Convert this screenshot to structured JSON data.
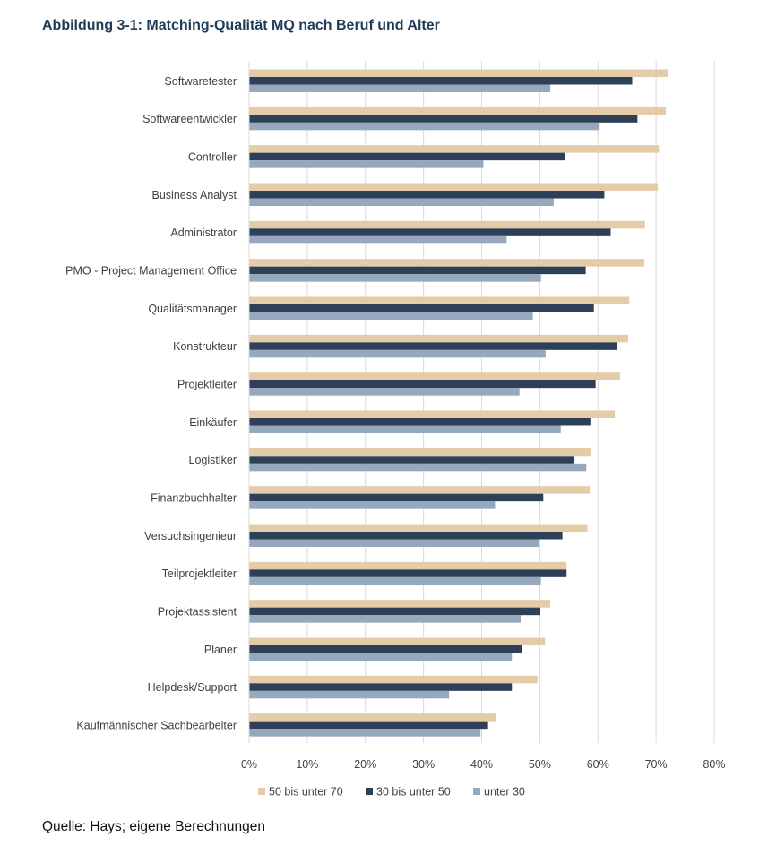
{
  "title": "Abbildung 3-1: Matching-Qualität MQ nach Beruf und Alter",
  "source": "Quelle: Hays; eigene Berechnungen",
  "chart_data": {
    "type": "bar",
    "orientation": "horizontal",
    "title": "",
    "xlabel": "",
    "ylabel": "",
    "xlim": [
      0,
      80
    ],
    "x_ticks": [
      "0%",
      "10%",
      "20%",
      "30%",
      "40%",
      "50%",
      "60%",
      "70%",
      "80%"
    ],
    "grid": true,
    "legend_position": "bottom",
    "categories": [
      "Softwaretester",
      "Softwareentwickler",
      "Controller",
      "Business Analyst",
      "Administrator",
      "PMO - Project Management Office",
      "Qualitätsmanager",
      "Konstrukteur",
      "Projektleiter",
      "Einkäufer",
      "Logistiker",
      "Finanzbuchhalter",
      "Versuchsingenieur",
      "Teilprojektleiter",
      "Projektassistent",
      "Planer",
      "Helpdesk/Support",
      "Kaufmännischer Sachbearbeiter"
    ],
    "series": [
      {
        "name": "50 bis unter 70",
        "color": "#e3cca7",
        "values": [
          72.1,
          71.7,
          70.5,
          70.3,
          68.1,
          68.0,
          65.4,
          65.2,
          63.8,
          62.9,
          58.9,
          58.6,
          58.2,
          54.6,
          51.8,
          50.9,
          49.6,
          42.5
        ]
      },
      {
        "name": "30 bis unter 50",
        "color": "#2e4057",
        "values": [
          65.9,
          66.8,
          54.3,
          61.1,
          62.2,
          57.9,
          59.3,
          63.2,
          59.6,
          58.7,
          55.8,
          50.6,
          53.9,
          54.6,
          50.1,
          47.0,
          45.2,
          41.1
        ]
      },
      {
        "name": "unter 30",
        "color": "#96a8bb",
        "values": [
          51.8,
          60.3,
          40.3,
          52.4,
          44.3,
          50.2,
          48.8,
          51.0,
          46.5,
          53.6,
          58.0,
          42.3,
          49.8,
          50.2,
          46.7,
          45.2,
          34.4,
          39.8
        ]
      }
    ]
  }
}
